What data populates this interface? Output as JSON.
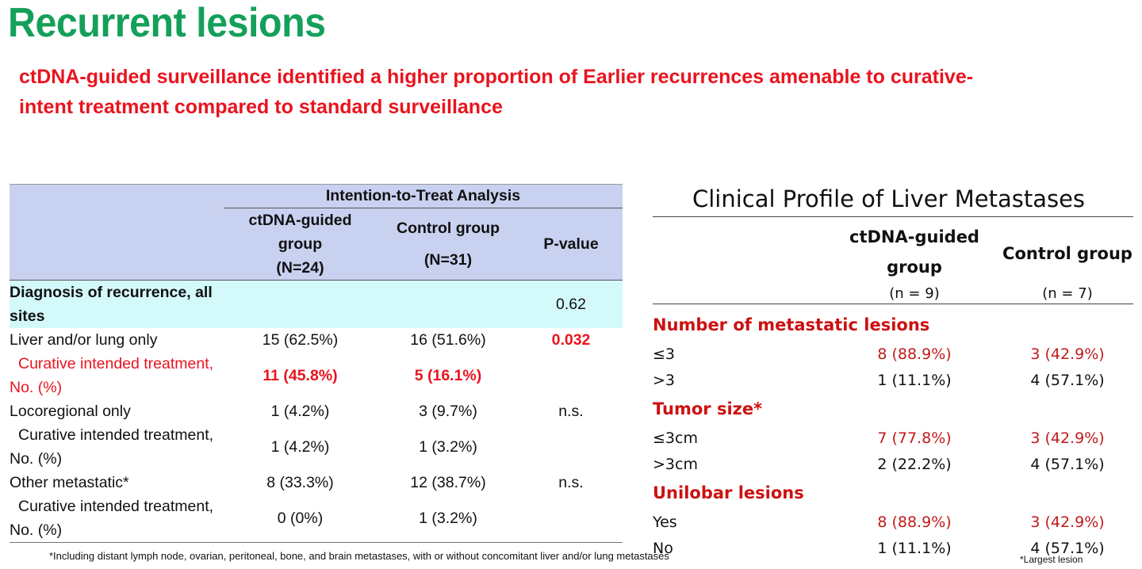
{
  "title": "Recurrent lesions",
  "subtitle": "ctDNA-guided surveillance identified a higher proportion of Earlier recurrences amenable to curative-intent treatment compared to standard surveillance",
  "left_table": {
    "group_header": "Intention-to-Treat Analysis",
    "col1": {
      "line1": "ctDNA-guided",
      "line2": "group",
      "line3": "(N=24)"
    },
    "col2": {
      "line1": "Control group",
      "line2": "(N=31)"
    },
    "col3": "P-value",
    "rows": [
      {
        "label1": "Diagnosis of recurrence, all",
        "label2": "sites",
        "v1": "",
        "v2": "",
        "p": "0.62"
      },
      {
        "label": "Liver and/or lung only",
        "v1": "15 (62.5%)",
        "v2": "16 (51.6%)",
        "p": "0.032"
      },
      {
        "label1": "Curative intended treatment,",
        "label2": "No. (%)",
        "v1": "11 (45.8%)",
        "v2": "5 (16.1%)",
        "p": ""
      },
      {
        "label": "Locoregional only",
        "v1": "1 (4.2%)",
        "v2": "3 (9.7%)",
        "p": "n.s."
      },
      {
        "label1": "Curative intended treatment,",
        "label2": "No. (%)",
        "v1": "1 (4.2%)",
        "v2": "1 (3.2%)",
        "p": ""
      },
      {
        "label": "Other metastatic*",
        "v1": "8 (33.3%)",
        "v2": "12 (38.7%)",
        "p": "n.s."
      },
      {
        "label1": "Curative intended treatment,",
        "label2": "No. (%)",
        "v1": "0 (0%)",
        "v2": "1 (3.2%)",
        "p": ""
      }
    ],
    "footnote": "*Including distant lymph node, ovarian, peritoneal, bone, and brain metastases, with or without concomitant liver and/or lung metastases"
  },
  "right_table": {
    "title": "Clinical Profile of Liver Metastases",
    "col1": {
      "line1": "ctDNA-guided",
      "line2": "group",
      "n": "(n = 9)"
    },
    "col2": {
      "line1": "Control group",
      "n": "(n = 7)"
    },
    "sections": [
      {
        "name": "Number of metastatic lesions",
        "rows": [
          {
            "label": "≤3",
            "v1": "8 (88.9%)",
            "v2": "3 (42.9%)"
          },
          {
            "label": ">3",
            "v1": "1 (11.1%)",
            "v2": "4 (57.1%)"
          }
        ]
      },
      {
        "name": "Tumor size*",
        "rows": [
          {
            "label": "≤3cm",
            "v1": "7 (77.8%)",
            "v2": "3 (42.9%)"
          },
          {
            "label": ">3cm",
            "v1": "2 (22.2%)",
            "v2": "4 (57.1%)"
          }
        ]
      },
      {
        "name": "Unilobar lesions",
        "rows": [
          {
            "label": "Yes",
            "v1": "8 (88.9%)",
            "v2": "3 (42.9%)"
          },
          {
            "label": "No",
            "v1": "1 (11.1%)",
            "v2": "4 (57.1%)"
          }
        ]
      }
    ],
    "footnote": "*Largest lesion"
  },
  "colors": {
    "title_green": "#14a05a",
    "subtitle_red": "#e8141e",
    "header_blue": "#c9d1f0",
    "diagnosis_row_cyan": "#d3f9fb",
    "section_red": "#cc1111"
  }
}
